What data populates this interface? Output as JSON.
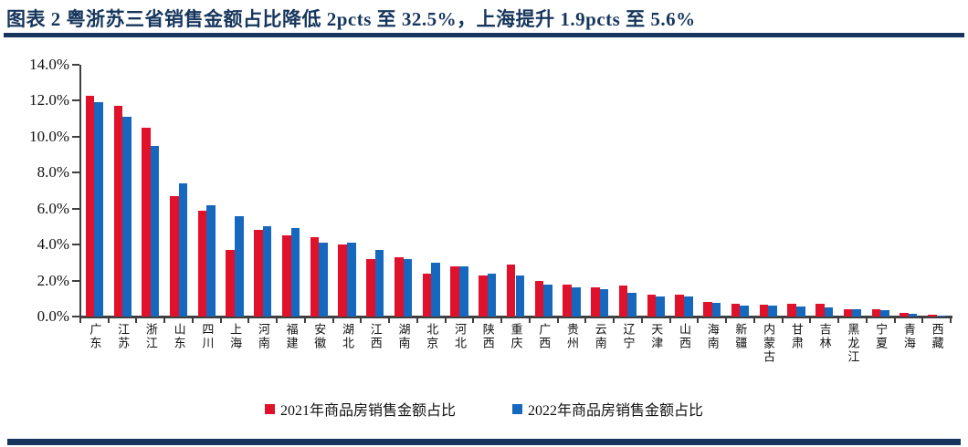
{
  "header": {
    "title": "图表 2  粤浙苏三省销售金额占比降低 2pcts 至 32.5%，上海提升 1.9pcts 至 5.6%"
  },
  "colors": {
    "accent_navy": "#17365d",
    "series_2021_red": "#e0112b",
    "series_2022_blue": "#1568bd",
    "axis": "#3f3f3f"
  },
  "chart_data": {
    "type": "bar",
    "title": "图表 2  粤浙苏三省销售金额占比降低 2pcts 至 32.5%，上海提升 1.9pcts 至 5.6%",
    "categories": [
      "广东",
      "江苏",
      "浙江",
      "山东",
      "四川",
      "上海",
      "河南",
      "福建",
      "安徽",
      "湖北",
      "江西",
      "湖南",
      "北京",
      "河北",
      "陕西",
      "重庆",
      "广西",
      "贵州",
      "云南",
      "辽宁",
      "天津",
      "山西",
      "海南",
      "新疆",
      "内蒙古",
      "甘肃",
      "吉林",
      "黑龙江",
      "宁夏",
      "青海",
      "西藏"
    ],
    "series": [
      {
        "name": "2021年商品房销售金额占比",
        "key": "2021",
        "color": "#e0112b",
        "values": [
          12.3,
          11.7,
          10.5,
          6.7,
          5.9,
          3.7,
          4.8,
          4.5,
          4.4,
          4.0,
          3.2,
          3.3,
          2.4,
          2.8,
          2.3,
          2.9,
          2.0,
          1.8,
          1.6,
          1.7,
          1.2,
          1.2,
          0.8,
          0.7,
          0.65,
          0.7,
          0.7,
          0.4,
          0.4,
          0.2,
          0.1
        ]
      },
      {
        "name": "2022年商品房销售金额占比",
        "key": "2022",
        "color": "#1568bd",
        "values": [
          11.9,
          11.1,
          9.5,
          7.4,
          6.2,
          5.6,
          5.0,
          4.9,
          4.1,
          4.1,
          3.7,
          3.2,
          3.0,
          2.8,
          2.4,
          2.3,
          1.8,
          1.6,
          1.5,
          1.3,
          1.1,
          1.1,
          0.75,
          0.6,
          0.6,
          0.55,
          0.5,
          0.4,
          0.35,
          0.15,
          0.05
        ]
      }
    ],
    "ylabel": "",
    "xlabel": "",
    "ylim": [
      0,
      14
    ],
    "ytick_step": 2,
    "ytick_labels": [
      "0.0%",
      "2.0%",
      "4.0%",
      "6.0%",
      "8.0%",
      "10.0%",
      "12.0%",
      "14.0%"
    ],
    "grid": false,
    "legend_position": "bottom"
  }
}
